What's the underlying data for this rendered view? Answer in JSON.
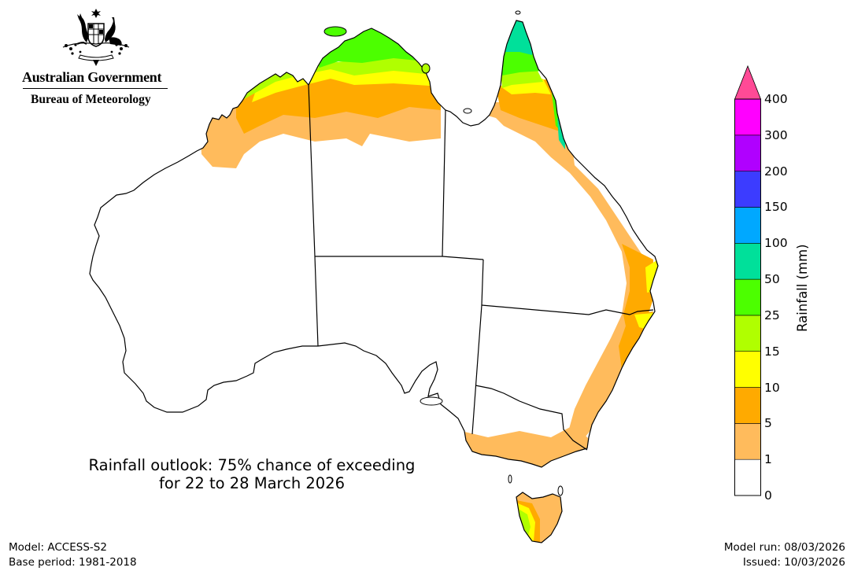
{
  "header": {
    "logo_line1": "Australian Government",
    "logo_line2": "Bureau of Meteorology",
    "crest_icon": "commonwealth-coat-of-arms-icon"
  },
  "title": {
    "line1": "Rainfall outlook: 75% chance of exceeding",
    "line2": "for 22 to 28 March 2026"
  },
  "footer": {
    "model": "Model: ACCESS-S2",
    "base_period": "Base period: 1981-2018",
    "model_run": "Model run: 08/03/2026",
    "issued": "Issued: 10/03/2026"
  },
  "legend": {
    "title": "Rainfall (mm)",
    "ticks": [
      "0",
      "1",
      "5",
      "10",
      "15",
      "25",
      "50",
      "100",
      "150",
      "200",
      "300",
      "400"
    ],
    "bins": [
      {
        "range": "0-1",
        "color": "#ffffff"
      },
      {
        "range": "1-5",
        "color": "#ffbb5c"
      },
      {
        "range": "5-10",
        "color": "#ffaa00"
      },
      {
        "range": "10-15",
        "color": "#ffff00"
      },
      {
        "range": "15-25",
        "color": "#b0ff00"
      },
      {
        "range": "25-50",
        "color": "#4cff00"
      },
      {
        "range": "50-100",
        "color": "#00e09a"
      },
      {
        "range": "100-150",
        "color": "#00a8ff"
      },
      {
        "range": "150-200",
        "color": "#3c3cff"
      },
      {
        "range": "200-300",
        "color": "#b000ff"
      },
      {
        "range": "300-400",
        "color": "#ff00ff"
      },
      {
        "range": ">400",
        "color": "#ff4a96"
      }
    ]
  },
  "map": {
    "region": "Australia",
    "regions_summary": [
      {
        "area": "Cape York Peninsula (north)",
        "range_mm": "50-100"
      },
      {
        "area": "Top End NT coast",
        "range_mm": "25-50"
      },
      {
        "area": "Kimberley coast WA",
        "range_mm": "15-25"
      },
      {
        "area": "Northern inland tropics",
        "range_mm": "1-10"
      },
      {
        "area": "Wet Tropics QLD coast",
        "range_mm": "25-100"
      },
      {
        "area": "East coast QLD/NSW",
        "range_mm": "1-15"
      },
      {
        "area": "Southern Victoria",
        "range_mm": "1-5"
      },
      {
        "area": "Western Tasmania",
        "range_mm": "10-25"
      },
      {
        "area": "Interior and west",
        "range_mm": "0-1"
      }
    ]
  }
}
